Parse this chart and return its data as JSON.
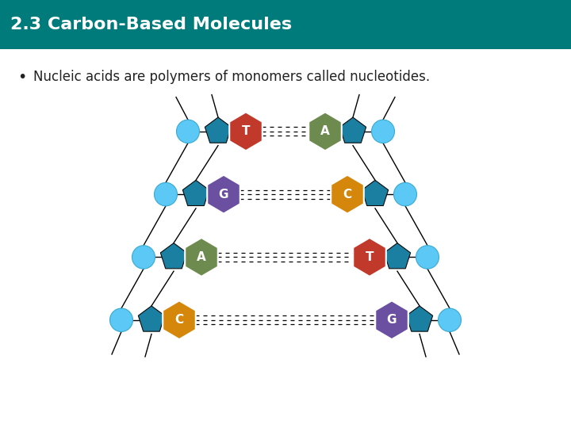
{
  "title": "2.3 Carbon-Based Molecules",
  "title_bg_color": "#007b7b",
  "title_text_color": "#ffffff",
  "body_bg_color": "#ffffff",
  "bullet_text": "Nucleic acids are polymers of monomers called nucleotides.",
  "bullet_text_color": "#222222",
  "dna_pairs": [
    {
      "left_base": "T",
      "left_color": "#c0392b",
      "right_base": "A",
      "right_color": "#6d8b4e"
    },
    {
      "left_base": "G",
      "left_color": "#6b4fa0",
      "right_base": "C",
      "right_color": "#d4870a"
    },
    {
      "left_base": "A",
      "left_color": "#6d8b4e",
      "right_base": "T",
      "right_color": "#c0392b"
    },
    {
      "left_base": "C",
      "left_color": "#d4870a",
      "right_base": "G",
      "right_color": "#6b4fa0"
    }
  ],
  "backbone_color": "#1a7fa0",
  "sphere_color": "#5bc8f5",
  "pentagon_color": "#1a7fa0"
}
